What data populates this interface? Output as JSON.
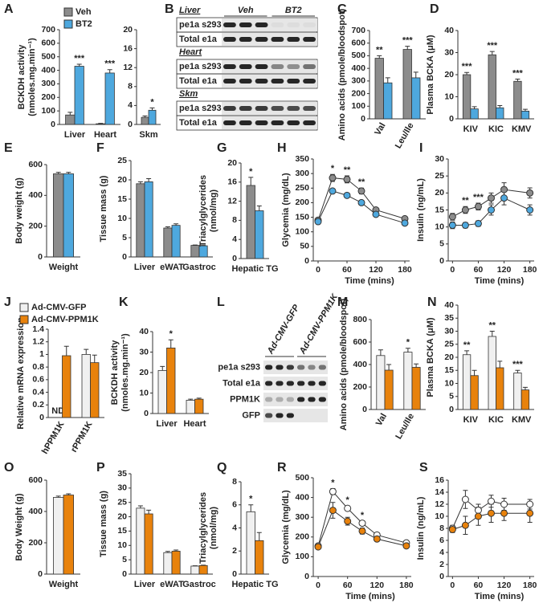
{
  "chart_data": [
    {
      "panel": "A",
      "type": "bar",
      "ylabel": [
        "BCKDH activity",
        "(nmoles.mg.min⁻¹)"
      ],
      "categories": [
        "Liver",
        "Heart"
      ],
      "series": [
        {
          "name": "Veh",
          "color": "#8c8c8c",
          "values": [
            70,
            5
          ],
          "errors": [
            20,
            3
          ]
        },
        {
          "name": "BT2",
          "color": "#4ea8de",
          "values": [
            430,
            380
          ],
          "errors": [
            15,
            25
          ]
        }
      ],
      "stars": [
        "***",
        "***"
      ],
      "ylim": [
        0,
        700
      ],
      "yticks": [
        0,
        100,
        200,
        300,
        400,
        500,
        600,
        700
      ],
      "legend": true
    },
    {
      "type": "bar",
      "categories": [
        "Skm"
      ],
      "series": [
        {
          "color": "#8c8c8c",
          "values": [
            1.5
          ],
          "errors": [
            0.3
          ]
        },
        {
          "color": "#4ea8de",
          "values": [
            3
          ],
          "errors": [
            0.5
          ]
        }
      ],
      "stars": [
        "*"
      ],
      "ylim": [
        0,
        20
      ],
      "yticks": [
        0,
        4,
        8,
        12,
        16,
        20
      ]
    },
    {
      "panel": "B",
      "type": "blot",
      "groups": [
        "Veh",
        "BT2"
      ],
      "sections": [
        {
          "tissue": "Liver",
          "rows": [
            "pe1a s293",
            "Total e1a"
          ]
        },
        {
          "tissue": "Heart",
          "rows": [
            "pe1a s293",
            "Total e1a"
          ]
        },
        {
          "tissue": "Skm",
          "rows": [
            "pe1a s293",
            "Total e1a"
          ]
        }
      ]
    },
    {
      "panel": "C",
      "type": "bar",
      "ylabel": [
        "Amino acids (pmole/bloodspot)"
      ],
      "categories": [
        "Val",
        "Leu/Ile"
      ],
      "series": [
        {
          "color": "#8c8c8c",
          "values": [
            480,
            550
          ],
          "errors": [
            20,
            25
          ]
        },
        {
          "color": "#4ea8de",
          "values": [
            285,
            325
          ],
          "errors": [
            40,
            45
          ]
        }
      ],
      "stars": [
        "**",
        "***"
      ],
      "ylim": [
        0,
        700
      ],
      "yticks": [
        0,
        100,
        200,
        300,
        400,
        500,
        600,
        700
      ],
      "rotate_labels": true
    },
    {
      "panel": "D",
      "type": "bar",
      "ylabel": [
        "Plasma BCKA (μM)"
      ],
      "categories": [
        "KIV",
        "KIC",
        "KMV"
      ],
      "series": [
        {
          "color": "#8c8c8c",
          "values": [
            20,
            29,
            17
          ],
          "errors": [
            1,
            1.5,
            1
          ]
        },
        {
          "color": "#4ea8de",
          "values": [
            4.5,
            5,
            3.5
          ],
          "errors": [
            1,
            1,
            0.8
          ]
        }
      ],
      "stars": [
        "***",
        "***",
        "***"
      ],
      "ylim": [
        0,
        40
      ],
      "yticks": [
        0,
        10,
        20,
        30,
        40
      ]
    },
    {
      "panel": "E",
      "type": "bar",
      "ylabel": [
        "Body weight (g)"
      ],
      "categories": [
        "Weight"
      ],
      "series": [
        {
          "color": "#8c8c8c",
          "values": [
            540
          ],
          "errors": [
            10
          ]
        },
        {
          "color": "#4ea8de",
          "values": [
            540
          ],
          "errors": [
            10
          ]
        }
      ],
      "ylim": [
        0,
        600
      ],
      "yticks": [
        0,
        200,
        400,
        600
      ]
    },
    {
      "panel": "F",
      "type": "bar",
      "ylabel": [
        "Tissue mass (g)"
      ],
      "categories": [
        "Liver",
        "eWAT",
        "Gastroc"
      ],
      "series": [
        {
          "color": "#8c8c8c",
          "values": [
            19,
            7.5,
            3
          ],
          "errors": [
            0.5,
            0.3,
            0.1
          ]
        },
        {
          "color": "#4ea8de",
          "values": [
            19.5,
            8.2,
            2.9
          ],
          "errors": [
            0.8,
            0.4,
            0.1
          ]
        }
      ],
      "ylim": [
        0,
        25
      ],
      "yticks": [
        0,
        5,
        10,
        15,
        20,
        25
      ]
    },
    {
      "panel": "G",
      "type": "bar",
      "ylabel": [
        "Triacylglycerides",
        "(nmol/mg)"
      ],
      "categories": [
        "Hepatic TG"
      ],
      "series": [
        {
          "color": "#8c8c8c",
          "values": [
            15.3
          ],
          "errors": [
            1.7
          ]
        },
        {
          "color": "#4ea8de",
          "values": [
            10
          ],
          "errors": [
            1
          ]
        }
      ],
      "stars": [
        "*"
      ],
      "ylim": [
        0,
        20
      ],
      "yticks": [
        0,
        4,
        8,
        12,
        16,
        20
      ]
    },
    {
      "panel": "H",
      "type": "line",
      "ylabel": [
        "Glycemia (mg/dL)"
      ],
      "xlabel": "Time (mins)",
      "x": [
        0,
        30,
        60,
        90,
        120,
        180
      ],
      "series": [
        {
          "color": "#8c8c8c",
          "values": [
            140,
            285,
            280,
            240,
            175,
            145
          ],
          "errors": [
            8,
            12,
            12,
            10,
            8,
            6
          ]
        },
        {
          "color": "#4ea8de",
          "values": [
            135,
            240,
            225,
            200,
            160,
            130
          ],
          "errors": [
            6,
            8,
            8,
            8,
            6,
            6
          ]
        }
      ],
      "stars": [
        null,
        "*",
        "**",
        "**",
        null,
        null
      ],
      "xlim": [
        -10,
        190
      ],
      "xticks": [
        0,
        60,
        120,
        180
      ],
      "ylim": [
        0,
        350
      ],
      "yticks": [
        0,
        50,
        100,
        150,
        200,
        250,
        300,
        350
      ]
    },
    {
      "panel": "I",
      "type": "line",
      "ylabel": [
        "Insulin (ng/mL)"
      ],
      "xlabel": "Time (mins)",
      "x": [
        0,
        30,
        60,
        90,
        120,
        180
      ],
      "series": [
        {
          "color": "#8c8c8c",
          "values": [
            13,
            15,
            16,
            18.5,
            21,
            20
          ],
          "errors": [
            1,
            1,
            1,
            1.5,
            2,
            1.5
          ]
        },
        {
          "color": "#4ea8de",
          "values": [
            10.5,
            10.5,
            11,
            15,
            18.5,
            15
          ],
          "errors": [
            1,
            0.8,
            0.8,
            1.5,
            2,
            1.5
          ]
        }
      ],
      "stars": [
        null,
        "**",
        "***",
        null,
        null,
        null
      ],
      "xlim": [
        -10,
        190
      ],
      "xticks": [
        0,
        60,
        120,
        180
      ],
      "ylim": [
        0,
        30
      ],
      "yticks": [
        0,
        5,
        10,
        15,
        20,
        25,
        30
      ]
    },
    {
      "panel": "J",
      "type": "bar",
      "ylabel": [
        "Relative mRNA expression"
      ],
      "categories": [
        "hPPM1K",
        "rPPM1K"
      ],
      "series": [
        {
          "name": "Ad-CMV-GFP",
          "color": "#f0f0f0",
          "values": [
            null,
            1.0
          ],
          "value_labels": [
            "ND",
            null
          ],
          "errors": [
            null,
            0.08
          ]
        },
        {
          "name": "Ad-CMV-PPM1K",
          "color": "#e8820c",
          "values": [
            0.98,
            0.87
          ],
          "errors": [
            0.15,
            0.12
          ]
        }
      ],
      "ylim": [
        0,
        1.4
      ],
      "yticks": [
        0,
        0.2,
        0.4,
        0.6,
        0.8,
        1,
        1.2,
        1.4
      ],
      "legend": true,
      "rotate_labels": true
    },
    {
      "panel": "K",
      "type": "bar",
      "ylabel": [
        "BCKDH activity",
        "(nmoles.mg.min⁻¹)"
      ],
      "categories": [
        "Liver",
        "Heart"
      ],
      "series": [
        {
          "color": "#f0f0f0",
          "values": [
            21,
            6.5
          ],
          "errors": [
            2,
            0.5
          ]
        },
        {
          "color": "#e8820c",
          "values": [
            32,
            7
          ],
          "errors": [
            4,
            0.5
          ]
        }
      ],
      "stars": [
        "*",
        null
      ],
      "ylim": [
        0,
        40
      ],
      "yticks": [
        0,
        10,
        20,
        30,
        40
      ]
    },
    {
      "panel": "L",
      "type": "blot",
      "groups": [
        "Ad-CMV-GFP",
        "Ad-CMV-PPM1K"
      ],
      "sections": [
        {
          "rows": [
            "pe1a s293",
            "Total e1a",
            "PPM1K",
            "GFP"
          ]
        }
      ]
    },
    {
      "panel": "M",
      "type": "bar",
      "ylabel": [
        "Amino acids (pmole/bloodspot)"
      ],
      "categories": [
        "Val",
        "Leu/Ile"
      ],
      "series": [
        {
          "color": "#f0f0f0",
          "values": [
            480,
            510
          ],
          "errors": [
            50,
            35
          ]
        },
        {
          "color": "#e8820c",
          "values": [
            350,
            375
          ],
          "errors": [
            50,
            30
          ]
        }
      ],
      "stars": [
        null,
        "*"
      ],
      "ylim": [
        0,
        800
      ],
      "yticks": [
        0,
        200,
        400,
        600,
        800
      ],
      "rotate_labels": true
    },
    {
      "panel": "N",
      "type": "bar",
      "ylabel": [
        "Plasma BCKA (μM)"
      ],
      "categories": [
        "KIV",
        "KIC",
        "KMV"
      ],
      "series": [
        {
          "color": "#f0f0f0",
          "values": [
            21,
            28,
            14
          ],
          "errors": [
            1.5,
            2,
            1
          ]
        },
        {
          "color": "#e8820c",
          "values": [
            13,
            16,
            7.5
          ],
          "errors": [
            2,
            2.5,
            1
          ]
        }
      ],
      "stars": [
        "**",
        "**",
        "***"
      ],
      "ylim": [
        0,
        40
      ],
      "yticks": [
        0,
        5,
        10,
        15,
        20,
        25,
        30,
        35,
        40
      ]
    },
    {
      "panel": "O",
      "type": "bar",
      "ylabel": [
        "Body Weight (g)"
      ],
      "categories": [
        "Weight"
      ],
      "series": [
        {
          "color": "#f0f0f0",
          "values": [
            490
          ],
          "errors": [
            8
          ]
        },
        {
          "color": "#e8820c",
          "values": [
            505
          ],
          "errors": [
            8
          ]
        }
      ],
      "ylim": [
        0,
        600
      ],
      "yticks": [
        0,
        200,
        400,
        600
      ]
    },
    {
      "panel": "P",
      "type": "bar",
      "ylabel": [
        "Tissue mass (g)"
      ],
      "categories": [
        "Liver",
        "eWAT",
        "Gastroc"
      ],
      "series": [
        {
          "color": "#f0f0f0",
          "values": [
            23,
            7.5,
            2.8
          ],
          "errors": [
            0.8,
            0.4,
            0.1
          ]
        },
        {
          "color": "#e8820c",
          "values": [
            21,
            8,
            3
          ],
          "errors": [
            1.3,
            0.4,
            0.1
          ]
        }
      ],
      "ylim": [
        0,
        35
      ],
      "yticks": [
        0,
        5,
        10,
        15,
        20,
        25,
        30,
        35
      ]
    },
    {
      "panel": "Q",
      "type": "bar",
      "ylabel": [
        "Triacylglycerides",
        "(nmol/mg)"
      ],
      "categories": [
        "Hepatic TG"
      ],
      "series": [
        {
          "color": "#f0f0f0",
          "values": [
            5.4
          ],
          "errors": [
            0.6
          ]
        },
        {
          "color": "#e8820c",
          "values": [
            2.9
          ],
          "errors": [
            0.7
          ]
        }
      ],
      "stars": [
        "*"
      ],
      "ylim": [
        0,
        8
      ],
      "yticks": [
        0,
        2,
        4,
        6,
        8
      ]
    },
    {
      "panel": "R",
      "type": "line",
      "ylabel": [
        "Glycemia (mg/dL)"
      ],
      "xlabel": "Time (mins)",
      "x": [
        0,
        30,
        60,
        90,
        120,
        180
      ],
      "series": [
        {
          "color": "#ffffff",
          "values": [
            155,
            430,
            345,
            270,
            210,
            170
          ],
          "errors": [
            8,
            15,
            12,
            10,
            8,
            6
          ]
        },
        {
          "color": "#e8820c",
          "values": [
            150,
            335,
            280,
            230,
            190,
            155
          ],
          "errors": [
            8,
            40,
            20,
            15,
            10,
            8
          ]
        }
      ],
      "stars": [
        null,
        "*",
        "*",
        "*",
        null,
        null
      ],
      "xlim": [
        -10,
        190
      ],
      "xticks": [
        0,
        60,
        120,
        180
      ],
      "ylim": [
        0,
        500
      ],
      "yticks": [
        0,
        100,
        200,
        300,
        400,
        500
      ]
    },
    {
      "panel": "S",
      "type": "line",
      "ylabel": [
        "Insulin (ng/mL)"
      ],
      "xlabel": "Time (mins)",
      "x": [
        0,
        30,
        60,
        90,
        120,
        180
      ],
      "series": [
        {
          "color": "#ffffff",
          "values": [
            8,
            12.8,
            11,
            12.5,
            12,
            12
          ],
          "errors": [
            0.5,
            1.5,
            1,
            1,
            1,
            0.8
          ]
        },
        {
          "color": "#e8820c",
          "values": [
            7.8,
            8.5,
            10,
            10.5,
            10.5,
            10.5
          ],
          "errors": [
            0.5,
            1.5,
            1.5,
            1.5,
            1.2,
            1.5
          ]
        }
      ],
      "xlim": [
        -10,
        190
      ],
      "xticks": [
        0,
        60,
        120,
        180
      ],
      "ylim": [
        0,
        16
      ],
      "yticks": [
        0,
        2,
        4,
        6,
        8,
        10,
        12,
        14,
        16
      ]
    }
  ]
}
